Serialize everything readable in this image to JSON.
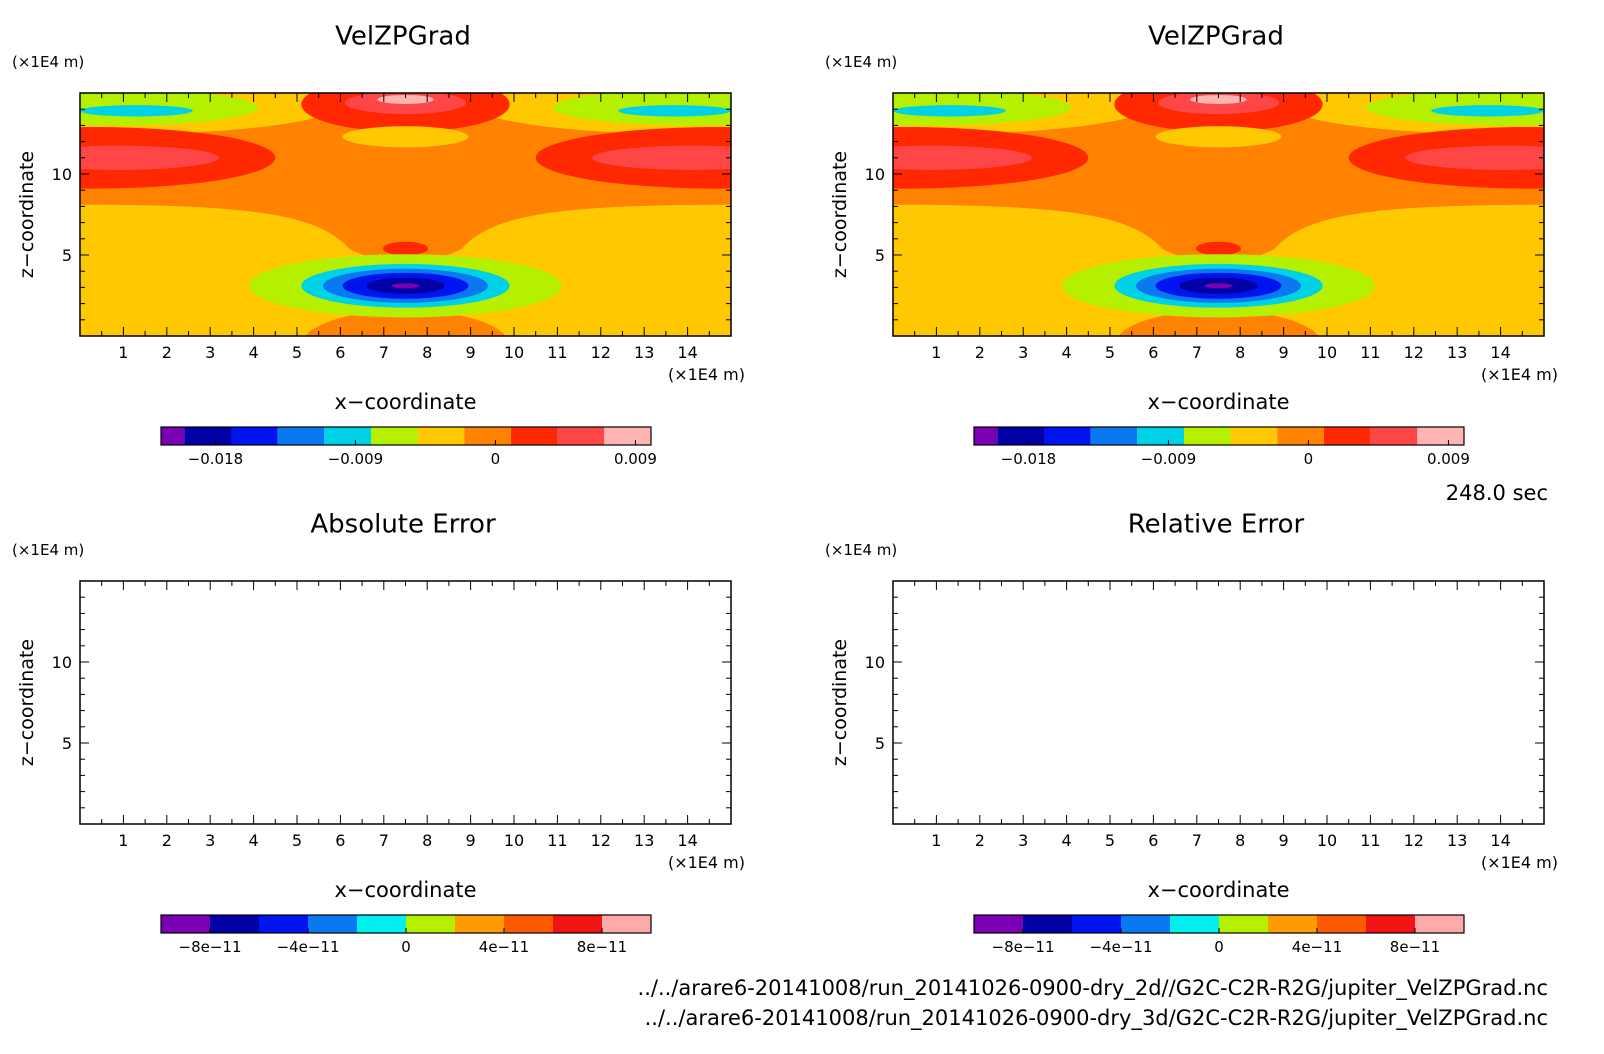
{
  "time_label": "248.0 sec",
  "files": [
    "../../arare6-20141008/run_20141026-0900-dry_2d//G2C-C2R-R2G/jupiter_VelZPGrad.nc",
    "../../arare6-20141008/run_20141026-0900-dry_3d/G2C-C2R-R2G/jupiter_VelZPGrad.nc"
  ],
  "colors": {
    "c0": "#7a00b4",
    "c1": "#0000a5",
    "c2": "#0014f0",
    "c3": "#0a78f0",
    "c4": "#00d2e6",
    "c5": "#b4f000",
    "c6": "#ffc800",
    "c7": "#ff8200",
    "c8": "#ff2800",
    "c9": "#ff4646",
    "c10": "#ffb4b4"
  },
  "chart_data": [
    {
      "type": "heatmap",
      "title": "VelZPGrad",
      "xlabel": "x−coordinate",
      "ylabel": "z−coordinate",
      "xunit": "(×1E4 m)",
      "yunit": "(×1E4 m)",
      "xticks": [
        "1",
        "2",
        "3",
        "4",
        "5",
        "6",
        "7",
        "8",
        "9",
        "10",
        "11",
        "12",
        "13",
        "14"
      ],
      "yticks": [
        "5",
        "10"
      ],
      "xlim": [
        0,
        15
      ],
      "ylim": [
        0,
        15
      ],
      "colorbar": {
        "ticks": [
          "−0.018",
          "−0.009",
          "0",
          "0.009"
        ],
        "colors": [
          "#7a00b4",
          "#0000a5",
          "#0014f0",
          "#0a78f0",
          "#00d2e6",
          "#b4f000",
          "#ffc800",
          "#ff8200",
          "#ff2800",
          "#ff4646",
          "#ffb4b4"
        ]
      },
      "filled": true
    },
    {
      "type": "heatmap",
      "title": "VelZPGrad",
      "xlabel": "x−coordinate",
      "ylabel": "z−coordinate",
      "xunit": "(×1E4 m)",
      "yunit": "(×1E4 m)",
      "xticks": [
        "1",
        "2",
        "3",
        "4",
        "5",
        "6",
        "7",
        "8",
        "9",
        "10",
        "11",
        "12",
        "13",
        "14"
      ],
      "yticks": [
        "5",
        "10"
      ],
      "xlim": [
        0,
        15
      ],
      "ylim": [
        0,
        15
      ],
      "colorbar": {
        "ticks": [
          "−0.018",
          "−0.009",
          "0",
          "0.009"
        ],
        "colors": [
          "#7a00b4",
          "#0000a5",
          "#0014f0",
          "#0a78f0",
          "#00d2e6",
          "#b4f000",
          "#ffc800",
          "#ff8200",
          "#ff2800",
          "#ff4646",
          "#ffb4b4"
        ]
      },
      "filled": true
    },
    {
      "type": "heatmap",
      "title": "Absolute Error",
      "xlabel": "x−coordinate",
      "ylabel": "z−coordinate",
      "xunit": "(×1E4 m)",
      "yunit": "(×1E4 m)",
      "xticks": [
        "1",
        "2",
        "3",
        "4",
        "5",
        "6",
        "7",
        "8",
        "9",
        "10",
        "11",
        "12",
        "13",
        "14"
      ],
      "yticks": [
        "5",
        "10"
      ],
      "xlim": [
        0,
        15
      ],
      "ylim": [
        0,
        15
      ],
      "colorbar": {
        "ticks": [
          "−8e−11",
          "−4e−11",
          "0",
          "4e−11",
          "8e−11"
        ],
        "colors": [
          "#7a00b4",
          "#0000a5",
          "#0014f0",
          "#0a78f0",
          "#00f0f0",
          "#b4f000",
          "#ff9b00",
          "#ff5a00",
          "#f01414",
          "#ffaaaa"
        ]
      },
      "filled": false
    },
    {
      "type": "heatmap",
      "title": "Relative Error",
      "xlabel": "x−coordinate",
      "ylabel": "z−coordinate",
      "xunit": "(×1E4 m)",
      "yunit": "(×1E4 m)",
      "xticks": [
        "1",
        "2",
        "3",
        "4",
        "5",
        "6",
        "7",
        "8",
        "9",
        "10",
        "11",
        "12",
        "13",
        "14"
      ],
      "yticks": [
        "5",
        "10"
      ],
      "xlim": [
        0,
        15
      ],
      "ylim": [
        0,
        15
      ],
      "colorbar": {
        "ticks": [
          "−8e−11",
          "−4e−11",
          "0",
          "4e−11",
          "8e−11"
        ],
        "colors": [
          "#7a00b4",
          "#0000a5",
          "#0014f0",
          "#0a78f0",
          "#00f0f0",
          "#b4f000",
          "#ff9b00",
          "#ff5a00",
          "#f01414",
          "#ffaaaa"
        ]
      },
      "filled": false
    }
  ]
}
